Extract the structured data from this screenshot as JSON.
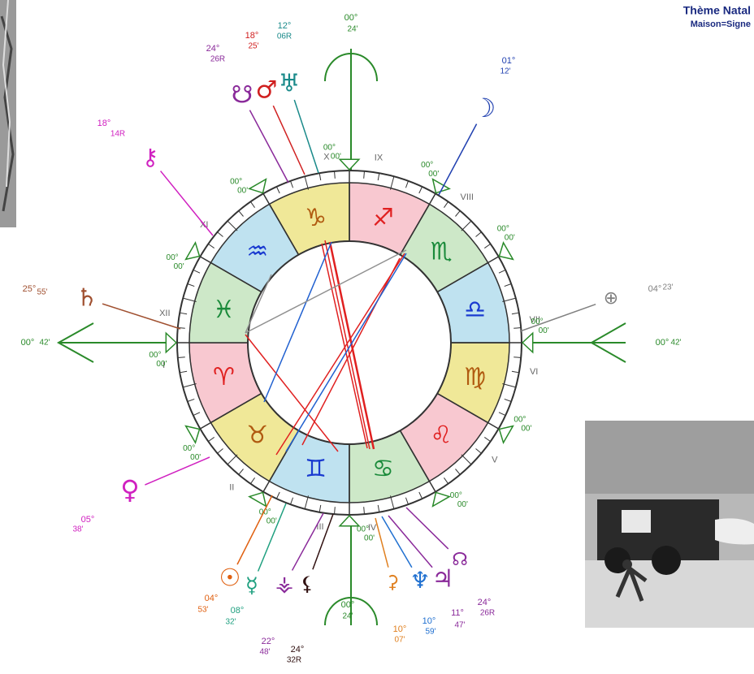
{
  "header": {
    "title": "Thème Natal",
    "subtitle": "Maison=Signe"
  },
  "houses": [
    "I",
    "II",
    "III",
    "IV",
    "V",
    "VI",
    "VII",
    "VIII",
    "IX",
    "X",
    "XI",
    "XII"
  ],
  "signs": [
    {
      "glyph": "♈",
      "color": "#e02020",
      "fill": "#f8c8d0"
    },
    {
      "glyph": "♉",
      "color": "#b05a10",
      "fill": "#f0e898"
    },
    {
      "glyph": "♊",
      "color": "#1a3ad0",
      "fill": "#bfe2f0"
    },
    {
      "glyph": "♋",
      "color": "#1a8a3a",
      "fill": "#cde8c8"
    },
    {
      "glyph": "♌",
      "color": "#e02020",
      "fill": "#f8c8d0"
    },
    {
      "glyph": "♍",
      "color": "#b05a10",
      "fill": "#f0e898"
    },
    {
      "glyph": "♎",
      "color": "#1a3ad0",
      "fill": "#bfe2f0"
    },
    {
      "glyph": "♏",
      "color": "#1a8a3a",
      "fill": "#cde8c8"
    },
    {
      "glyph": "♐",
      "color": "#e02020",
      "fill": "#f8c8d0"
    },
    {
      "glyph": "♑",
      "color": "#b05a10",
      "fill": "#f0e898"
    },
    {
      "glyph": "♒",
      "color": "#1a3ad0",
      "fill": "#bfe2f0"
    },
    {
      "glyph": "♓",
      "color": "#1a8a3a",
      "fill": "#cde8c8"
    }
  ],
  "cusps": [
    {
      "deg": "00°",
      "min": "00'"
    },
    {
      "deg": "00°",
      "min": "00'"
    },
    {
      "deg": "00°",
      "min": "00'"
    },
    {
      "deg": "00°",
      "min": "00'"
    },
    {
      "deg": "00°",
      "min": "00'"
    },
    {
      "deg": "00°",
      "min": "00'"
    },
    {
      "deg": "00°",
      "min": "00'"
    },
    {
      "deg": "00°",
      "min": "00'"
    },
    {
      "deg": "00°",
      "min": "00'"
    },
    {
      "deg": "00°",
      "min": "00'"
    },
    {
      "deg": "00°",
      "min": "00'"
    },
    {
      "deg": "00°",
      "min": "00'"
    }
  ],
  "angles": {
    "asc": {
      "deg": "00°",
      "min": "42'"
    },
    "dsc": {
      "deg": "00°",
      "min": "42'"
    },
    "mc": {
      "deg": "00°",
      "min": "24'"
    },
    "ic": {
      "deg": "00°",
      "min": "24'"
    }
  },
  "planets": [
    {
      "glyph": "☋",
      "deg": "24°",
      "min": "26R",
      "color": "#8a2a9a"
    },
    {
      "glyph": "♂",
      "deg": "18°",
      "min": "25'",
      "color": "#d02020"
    },
    {
      "glyph": "♅",
      "deg": "12°",
      "min": "06R",
      "color": "#1a8a8a"
    },
    {
      "glyph": "☽",
      "deg": "01°",
      "min": "12'",
      "color": "#2040b0"
    },
    {
      "glyph": "⚷",
      "deg": "18°",
      "min": "14R",
      "color": "#d020c0"
    },
    {
      "glyph": "♄",
      "deg": "25°",
      "min": "55'",
      "color": "#a05030"
    },
    {
      "glyph": "⊕",
      "deg": "04°",
      "min": "23'",
      "color": "#808080"
    },
    {
      "glyph": "♀",
      "deg": "05°",
      "min": "38'",
      "color": "#d020c0"
    },
    {
      "glyph": "☉",
      "deg": "04°",
      "min": "53'",
      "color": "#e06010"
    },
    {
      "glyph": "☿",
      "deg": "08°",
      "min": "32'",
      "color": "#20a080"
    },
    {
      "glyph": "⚶",
      "deg": "22°",
      "min": "48'",
      "color": "#8a2a9a"
    },
    {
      "glyph": "⚸",
      "deg": "24°",
      "min": "32R",
      "color": "#301010"
    },
    {
      "glyph": "⚳",
      "deg": "10°",
      "min": "07'",
      "color": "#e08020"
    },
    {
      "glyph": "♆",
      "deg": "10°",
      "min": "59'",
      "color": "#2070d0"
    },
    {
      "glyph": "♃",
      "deg": "11°",
      "min": "47'",
      "color": "#8a2a9a"
    },
    {
      "glyph": "☊",
      "deg": "24°",
      "min": "26R",
      "color": "#8a2a9a"
    }
  ]
}
